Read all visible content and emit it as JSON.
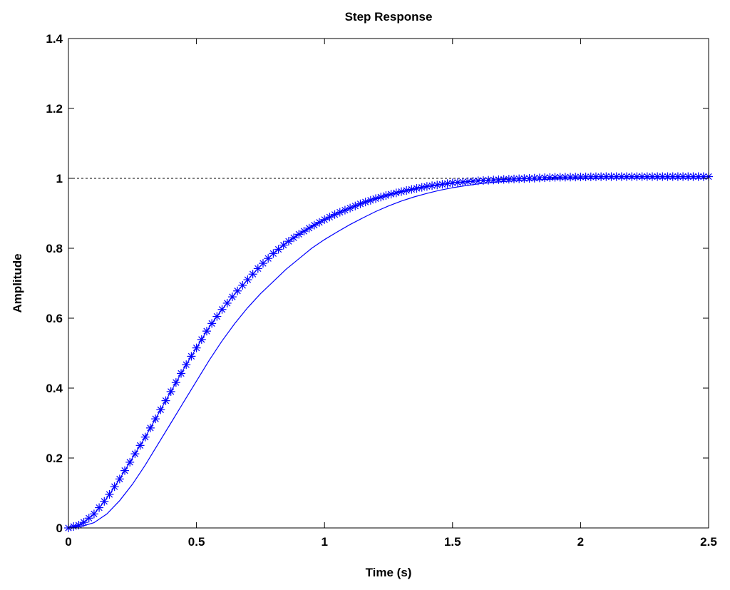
{
  "chart_data": {
    "type": "line",
    "title": "Step Response",
    "xlabel": "Time (s)",
    "ylabel": "Amplitude",
    "xlim": [
      0,
      2.5
    ],
    "ylim": [
      0,
      1.4
    ],
    "x_ticks": [
      0,
      0.5,
      1,
      1.5,
      2,
      2.5
    ],
    "x_tick_labels": [
      "0",
      "0.5",
      "1",
      "1.5",
      "2",
      "2.5"
    ],
    "y_ticks": [
      0,
      0.2,
      0.4,
      0.6,
      0.8,
      1,
      1.2,
      1.4
    ],
    "y_tick_labels": [
      "0",
      "0.2",
      "0.4",
      "0.6",
      "0.8",
      "1",
      "1.2",
      "1.4"
    ],
    "grid": false,
    "reference_line": {
      "y": 1,
      "style": "dashed",
      "color": "#000000"
    },
    "series": [
      {
        "style": "solid line",
        "marker": "none",
        "color": "#0000ff",
        "x": [
          0,
          0.05,
          0.1,
          0.15,
          0.2,
          0.25,
          0.3,
          0.35,
          0.4,
          0.45,
          0.5,
          0.55,
          0.6,
          0.65,
          0.7,
          0.75,
          0.8,
          0.85,
          0.9,
          0.95,
          1.0,
          1.05,
          1.1,
          1.15,
          1.2,
          1.25,
          1.3,
          1.35,
          1.4,
          1.45,
          1.5,
          1.55,
          1.6,
          1.65,
          1.7,
          1.75,
          1.8,
          1.9,
          2.0,
          2.1,
          2.2,
          2.3,
          2.4,
          2.5
        ],
        "y": [
          0,
          0.004,
          0.015,
          0.04,
          0.078,
          0.125,
          0.18,
          0.24,
          0.3,
          0.36,
          0.42,
          0.48,
          0.535,
          0.585,
          0.63,
          0.67,
          0.705,
          0.74,
          0.77,
          0.8,
          0.825,
          0.847,
          0.868,
          0.887,
          0.905,
          0.921,
          0.935,
          0.947,
          0.957,
          0.966,
          0.973,
          0.979,
          0.984,
          0.988,
          0.991,
          0.993,
          0.995,
          0.998,
          0.999,
          1.0,
          1.0,
          1.0,
          1.0,
          1.0
        ]
      },
      {
        "style": "solid line",
        "marker": "asterisk",
        "color": "#0000ff",
        "x_start": 0,
        "x_step": 0.02,
        "x_end": 2.5,
        "y_at": {
          "x": [
            0,
            0.05,
            0.1,
            0.15,
            0.2,
            0.25,
            0.3,
            0.35,
            0.4,
            0.45,
            0.5,
            0.55,
            0.6,
            0.65,
            0.7,
            0.75,
            0.8,
            0.85,
            0.9,
            0.95,
            1.0,
            1.05,
            1.1,
            1.15,
            1.2,
            1.25,
            1.3,
            1.35,
            1.4,
            1.45,
            1.5,
            1.55,
            1.6,
            1.7,
            1.8,
            1.9,
            2.0,
            2.1,
            2.2,
            2.3,
            2.4,
            2.5
          ],
          "y": [
            0,
            0.01,
            0.04,
            0.085,
            0.14,
            0.2,
            0.26,
            0.325,
            0.39,
            0.455,
            0.515,
            0.575,
            0.625,
            0.67,
            0.71,
            0.75,
            0.785,
            0.815,
            0.84,
            0.862,
            0.882,
            0.9,
            0.915,
            0.93,
            0.942,
            0.953,
            0.962,
            0.97,
            0.977,
            0.982,
            0.987,
            0.99,
            0.993,
            0.997,
            1.0,
            1.003,
            1.004,
            1.005,
            1.005,
            1.005,
            1.005,
            1.005
          ]
        }
      }
    ]
  }
}
